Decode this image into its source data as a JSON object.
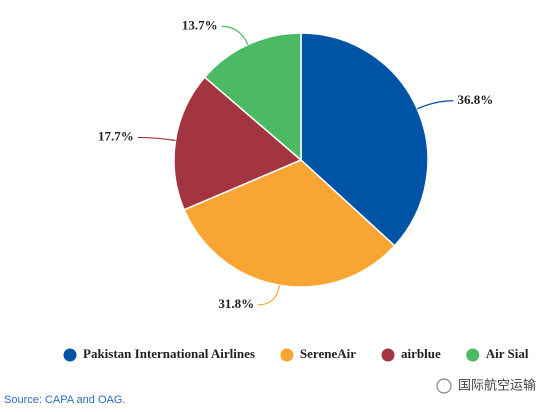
{
  "chart_data": {
    "type": "pie",
    "categories": [
      "Pakistan International Airlines",
      "SereneAir",
      "airblue",
      "Air Sial"
    ],
    "values": [
      36.8,
      31.8,
      17.7,
      13.7
    ],
    "value_labels": [
      "36.8%",
      "31.8%",
      "17.7%",
      "13.7%"
    ],
    "colors": [
      "#0054a6",
      "#f9a533",
      "#a4343f",
      "#4cb965"
    ],
    "legend": "bottom",
    "source": "Source: CAPA and OAG.",
    "watermark": "国际航空运输"
  }
}
